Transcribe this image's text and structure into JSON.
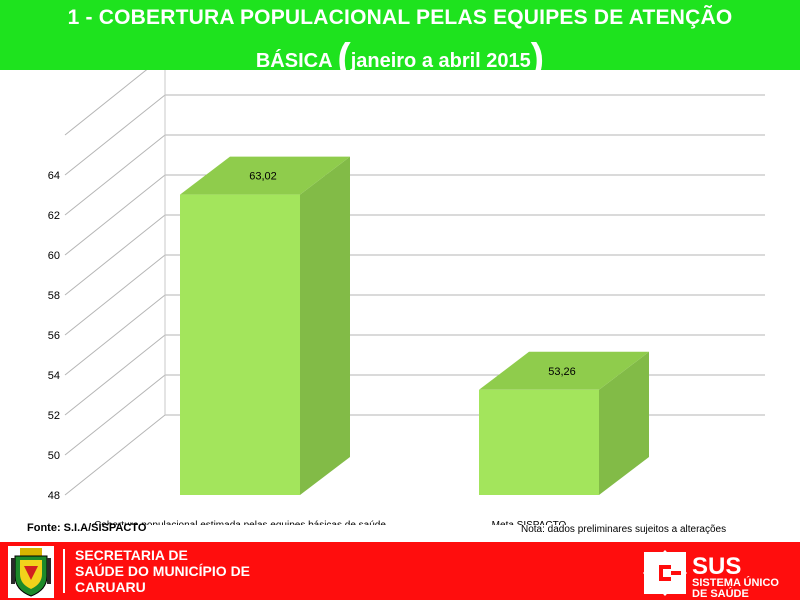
{
  "header": {
    "title_line1": "1 - COBERTURA POPULACIONAL PELAS EQUIPES DE ATENÇÃO",
    "title_line2_word": "BÁSICA",
    "title_line2_paren_open": "(",
    "title_line2_period": "janeiro a abril 2015",
    "title_line2_paren_close": ")"
  },
  "chart_data": {
    "type": "bar",
    "categories": [
      "Cobertura populacional estimada pelas equipes básicas de saúde",
      "Meta SISPACTO"
    ],
    "values": [
      63.02,
      53.26
    ],
    "value_labels": [
      "63,02",
      "53,26"
    ],
    "yticks": [
      "48",
      "50",
      "52",
      "54",
      "56",
      "58",
      "60",
      "62",
      "64"
    ],
    "ylim": [
      48,
      66
    ],
    "grid": true,
    "bar_color": "#a3e55c"
  },
  "notes": {
    "fonte": "Fonte: S.I.A/SISPACTO",
    "nota": "Nota: dados preliminares sujeitos a alterações"
  },
  "footer": {
    "secretaria_line1": "SECRETARIA DE",
    "secretaria_line2": "SAÚDE DO MUNICÍPIO DE",
    "secretaria_line3": "CARUARU",
    "crest_icon": "caruaru-crest-icon",
    "sus_logo": "sus-logo",
    "sus_abbr": "SUS",
    "sus_line1": "SISTEMA ÚNICO",
    "sus_line2": "DE SAÚDE"
  }
}
